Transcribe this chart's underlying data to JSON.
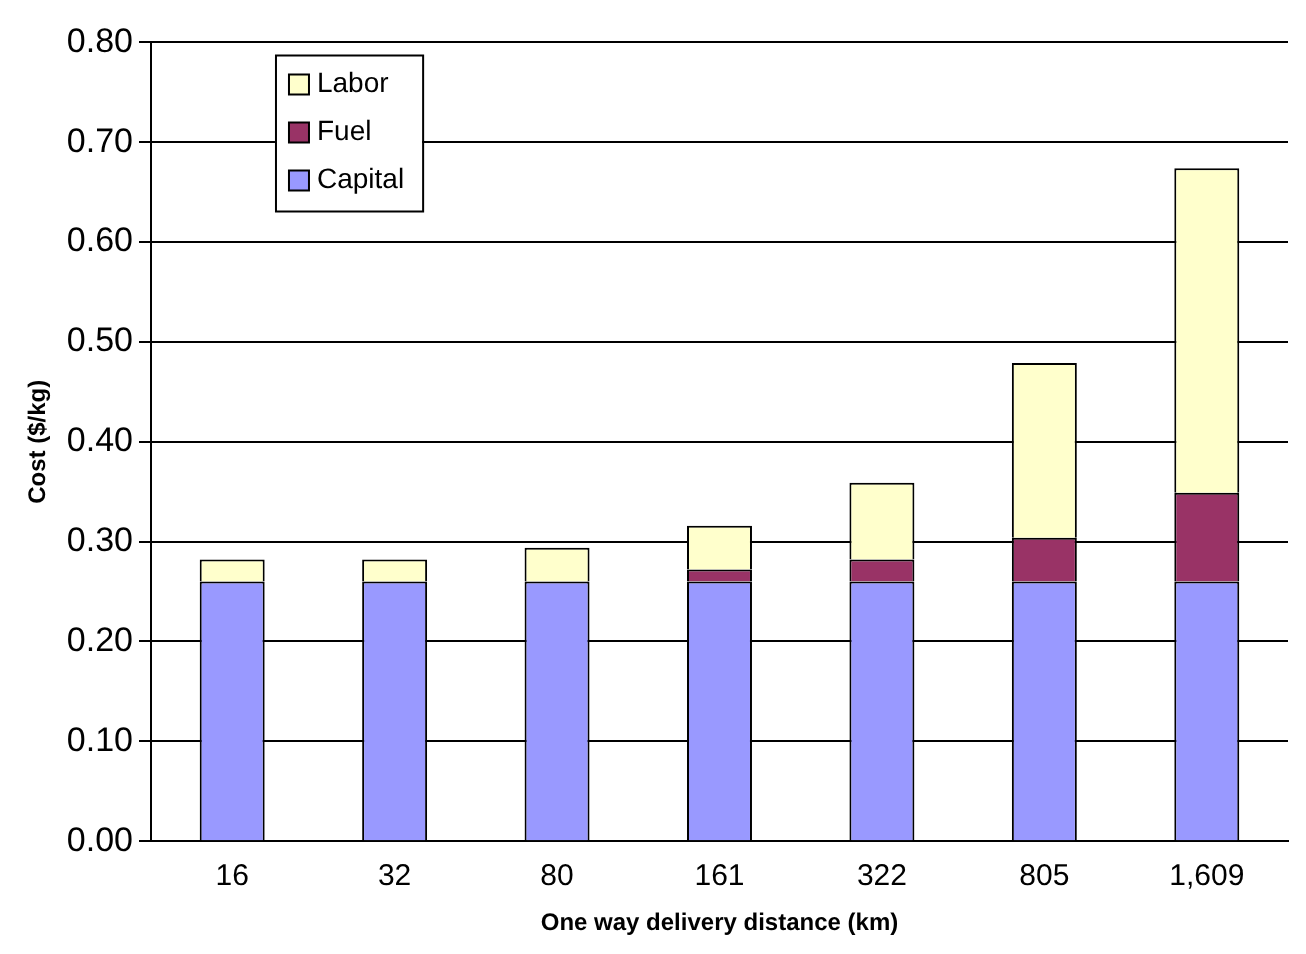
{
  "chart_data": {
    "type": "bar",
    "stacked": true,
    "xlabel": "One way delivery distance (km)",
    "ylabel": "Cost ($/kg)",
    "categories": [
      "16",
      "32",
      "80",
      "161",
      "322",
      "805",
      "1,609"
    ],
    "series": [
      {
        "name": "Capital",
        "color": "#9999ff",
        "values": [
          0.26,
          0.26,
          0.26,
          0.26,
          0.26,
          0.26,
          0.26
        ]
      },
      {
        "name": "Fuel",
        "color": "#993366",
        "values": [
          0,
          0,
          0,
          0.012,
          0.022,
          0.044,
          0.089
        ]
      },
      {
        "name": "Labor",
        "color": "#ffffcc",
        "values": [
          0.022,
          0.022,
          0.034,
          0.044,
          0.077,
          0.175,
          0.325
        ]
      }
    ],
    "ylim": [
      0,
      0.8
    ],
    "yticks": [
      {
        "value": 0,
        "label": "0.00"
      },
      {
        "value": 0.1,
        "label": "0.10"
      },
      {
        "value": 0.2,
        "label": "0.20"
      },
      {
        "value": 0.3,
        "label": "0.30"
      },
      {
        "value": 0.4,
        "label": "0.40"
      },
      {
        "value": 0.5,
        "label": "0.50"
      },
      {
        "value": 0.6,
        "label": "0.60"
      },
      {
        "value": 0.7,
        "label": "0.70"
      },
      {
        "value": 0.8,
        "label": "0.80"
      }
    ],
    "grid": "y",
    "legend": "top left"
  }
}
